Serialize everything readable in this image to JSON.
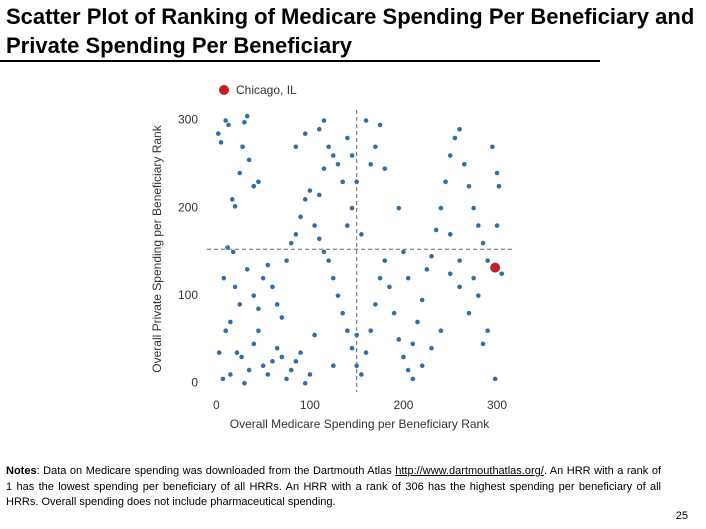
{
  "title": "Scatter Plot of Ranking of Medicare Spending Per Beneficiary and Private Spending Per Beneficiary",
  "chart_data": {
    "type": "scatter",
    "x_label": "Overall Medicare Spending per Beneficiary Rank",
    "y_label": "Overall Private Spending per Beneficiary Rank",
    "xlim": [
      -10,
      316
    ],
    "ylim": [
      -10,
      312
    ],
    "xticks": [
      0,
      100,
      200,
      300
    ],
    "yticks": [
      0,
      100,
      200,
      300
    ],
    "vline": 150,
    "hline": 153,
    "series": [
      {
        "color": "#2f6ea8",
        "x": [
          2,
          5,
          10,
          13,
          17,
          20,
          25,
          30,
          33,
          28,
          35,
          40,
          45,
          12,
          8,
          18,
          3,
          7,
          15,
          22,
          27,
          30,
          35,
          40,
          45,
          50,
          55,
          60,
          65,
          70,
          75,
          80,
          85,
          90,
          95,
          100,
          40,
          45,
          50,
          55,
          60,
          65,
          70,
          75,
          80,
          85,
          90,
          95,
          100,
          110,
          115,
          120,
          125,
          130,
          135,
          140,
          145,
          110,
          115,
          95,
          85,
          105,
          110,
          115,
          120,
          125,
          130,
          135,
          140,
          145,
          150,
          155,
          160,
          165,
          170,
          175,
          180,
          185,
          190,
          195,
          200,
          205,
          210,
          215,
          220,
          225,
          230,
          235,
          240,
          245,
          250,
          255,
          260,
          265,
          270,
          275,
          280,
          285,
          290,
          295,
          300,
          302,
          290,
          285,
          270,
          260,
          250,
          240,
          230,
          220,
          210,
          165,
          170,
          160,
          175,
          180,
          150,
          145,
          140,
          155,
          150,
          125,
          105,
          195,
          200,
          205,
          250,
          260,
          275,
          280,
          300,
          15,
          25,
          10,
          20,
          33,
          305,
          298
        ],
        "values": [
          285,
          275,
          300,
          295,
          210,
          202,
          240,
          298,
          305,
          270,
          255,
          225,
          230,
          155,
          120,
          150,
          35,
          5,
          10,
          35,
          30,
          0,
          15,
          45,
          60,
          20,
          10,
          25,
          40,
          30,
          5,
          15,
          25,
          35,
          0,
          10,
          100,
          85,
          120,
          135,
          110,
          90,
          75,
          140,
          160,
          170,
          190,
          210,
          220,
          215,
          245,
          270,
          260,
          250,
          230,
          280,
          260,
          290,
          300,
          285,
          270,
          180,
          165,
          150,
          140,
          120,
          100,
          80,
          60,
          40,
          20,
          10,
          35,
          60,
          90,
          120,
          140,
          110,
          80,
          50,
          30,
          15,
          45,
          70,
          95,
          130,
          145,
          175,
          200,
          230,
          260,
          280,
          290,
          250,
          225,
          200,
          180,
          160,
          140,
          270,
          240,
          225,
          60,
          45,
          80,
          110,
          125,
          60,
          40,
          20,
          5,
          250,
          270,
          300,
          295,
          245,
          230,
          200,
          180,
          170,
          55,
          20,
          55,
          200,
          150,
          120,
          170,
          140,
          120,
          100,
          180,
          70,
          90,
          60,
          110,
          130,
          125,
          5
        ]
      },
      {
        "name": "Chicago, IL",
        "color": "#c0202a",
        "x": [
          298
        ],
        "values": [
          132
        ]
      }
    ]
  },
  "notes": {
    "label": "Notes",
    "text_before": ": Data on Medicare spending was downloaded from the Dartmouth Atlas ",
    "link": "http://www.dartmouthatlas.org/",
    "text_after": ". An HRR with a rank of 1 has the lowest spending per beneficiary of all HRRs. An HRR with a rank of 306 has the highest spending per beneficiary of all HRRs.  Overall spending does not include pharmaceutical spending."
  },
  "page_number": "25"
}
